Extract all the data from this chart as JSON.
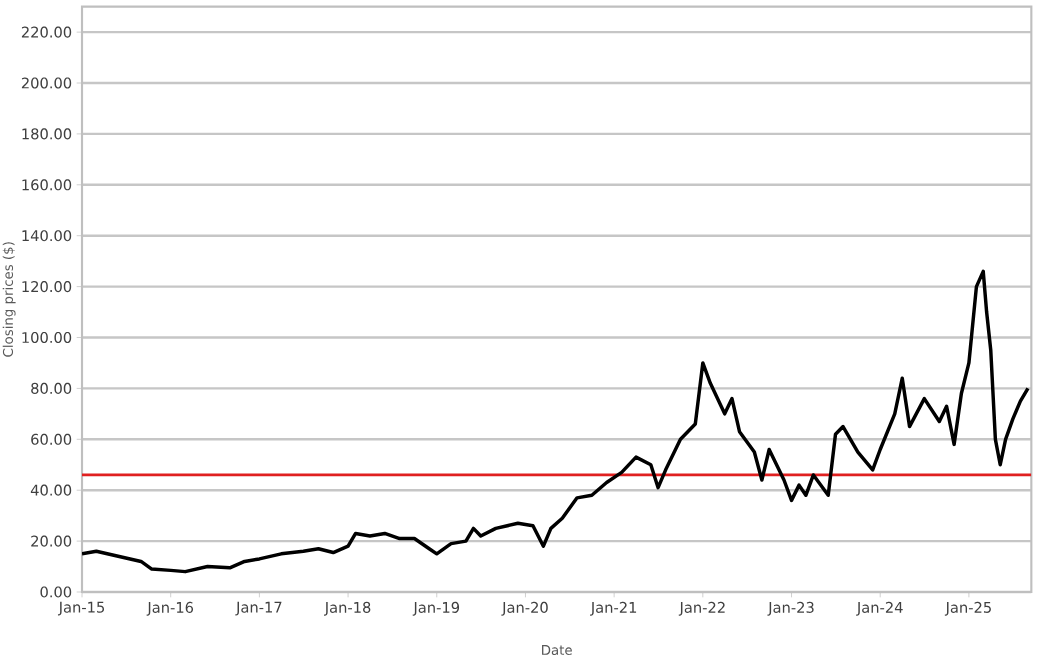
{
  "chart_data": {
    "type": "line",
    "xlabel": "Date",
    "ylabel": "Closing prices ($)",
    "x": [
      "2015-01-01",
      "2015-03-01",
      "2015-06-01",
      "2015-09-01",
      "2015-10-15",
      "2016-01-01",
      "2016-03-01",
      "2016-06-01",
      "2016-09-01",
      "2016-11-01",
      "2017-01-01",
      "2017-04-01",
      "2017-07-01",
      "2017-09-01",
      "2017-11-01",
      "2018-01-01",
      "2018-02-01",
      "2018-04-01",
      "2018-06-01",
      "2018-08-01",
      "2018-10-01",
      "2018-12-01",
      "2019-01-01",
      "2019-03-01",
      "2019-05-01",
      "2019-06-01",
      "2019-07-01",
      "2019-09-01",
      "2019-12-01",
      "2020-02-01",
      "2020-03-15",
      "2020-04-15",
      "2020-06-01",
      "2020-08-01",
      "2020-10-01",
      "2020-12-01",
      "2021-02-01",
      "2021-04-01",
      "2021-06-01",
      "2021-07-01",
      "2021-08-01",
      "2021-10-01",
      "2021-12-01",
      "2022-01-01",
      "2022-02-01",
      "2022-04-01",
      "2022-05-01",
      "2022-06-01",
      "2022-08-01",
      "2022-09-01",
      "2022-10-01",
      "2022-12-01",
      "2023-01-01",
      "2023-02-01",
      "2023-03-01",
      "2023-04-01",
      "2023-06-01",
      "2023-07-01",
      "2023-08-01",
      "2023-10-01",
      "2023-12-01",
      "2024-01-01",
      "2024-03-01",
      "2024-04-01",
      "2024-05-01",
      "2024-07-01",
      "2024-09-01",
      "2024-10-01",
      "2024-11-01",
      "2024-12-01",
      "2025-01-01",
      "2025-02-01",
      "2025-03-01",
      "2025-03-15",
      "2025-04-01",
      "2025-04-20",
      "2025-05-10",
      "2025-06-01",
      "2025-07-01",
      "2025-08-01",
      "2025-09-01"
    ],
    "series": [
      {
        "color": "#000000",
        "values": [
          15,
          16,
          14,
          12,
          9,
          8.5,
          8,
          10,
          9.5,
          12,
          13,
          15,
          16,
          17,
          15.5,
          18,
          23,
          22,
          23,
          21,
          21,
          17,
          15,
          19,
          20,
          25,
          22,
          25,
          27,
          26,
          18,
          25,
          29,
          37,
          38,
          43,
          47,
          53,
          50,
          41,
          48,
          60,
          66,
          90,
          82,
          70,
          76,
          63,
          55,
          44,
          56,
          44,
          36,
          42,
          38,
          46,
          38,
          62,
          65,
          55,
          48,
          56,
          70,
          84,
          65,
          76,
          67,
          73,
          58,
          78,
          90,
          120,
          126,
          110,
          95,
          60,
          50,
          60,
          68,
          75,
          80
        ]
      }
    ],
    "xlim": [
      "2015-01-01",
      "2025-09-15"
    ],
    "xticks": [
      {
        "value": "2015-01-01",
        "label": "Jan-15"
      },
      {
        "value": "2016-01-01",
        "label": "Jan-16"
      },
      {
        "value": "2017-01-01",
        "label": "Jan-17"
      },
      {
        "value": "2018-01-01",
        "label": "Jan-18"
      },
      {
        "value": "2019-01-01",
        "label": "Jan-19"
      },
      {
        "value": "2020-01-01",
        "label": "Jan-20"
      },
      {
        "value": "2021-01-01",
        "label": "Jan-21"
      },
      {
        "value": "2022-01-01",
        "label": "Jan-22"
      },
      {
        "value": "2023-01-01",
        "label": "Jan-23"
      },
      {
        "value": "2024-01-01",
        "label": "Jan-24"
      },
      {
        "value": "2025-01-01",
        "label": "Jan-25"
      }
    ],
    "ylim": [
      0,
      230
    ],
    "yticks": [
      {
        "value": 0,
        "label": "0.00"
      },
      {
        "value": 20,
        "label": "20.00"
      },
      {
        "value": 40,
        "label": "40.00"
      },
      {
        "value": 60,
        "label": "60.00"
      },
      {
        "value": 80,
        "label": "80.00"
      },
      {
        "value": 100,
        "label": "100.00"
      },
      {
        "value": 120,
        "label": "120.00"
      },
      {
        "value": 140,
        "label": "140.00"
      },
      {
        "value": 160,
        "label": "160.00"
      },
      {
        "value": 180,
        "label": "180.00"
      },
      {
        "value": 200,
        "label": "200.00"
      },
      {
        "value": 220,
        "label": "220.00"
      }
    ],
    "grid": "y",
    "ref_lines": [
      {
        "axis": "y",
        "value": 46,
        "color": "#e02020"
      }
    ]
  }
}
